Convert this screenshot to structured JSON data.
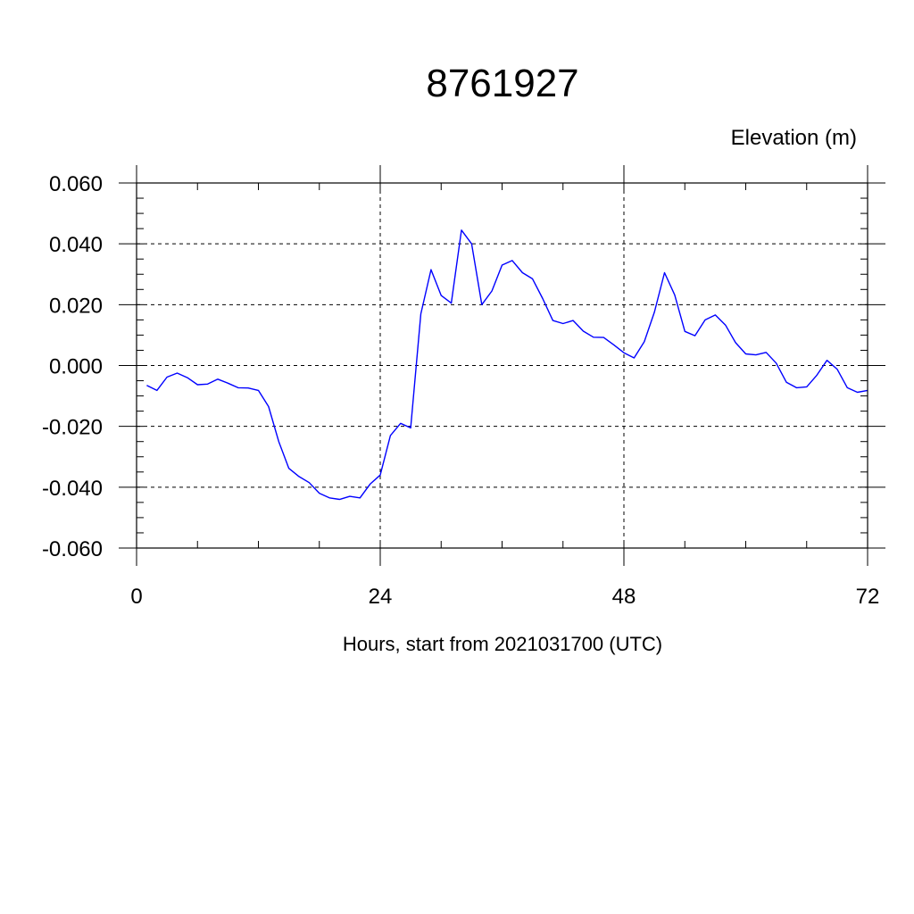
{
  "chart_data": {
    "type": "line",
    "title": "8761927",
    "ylabel": "Elevation (m)",
    "xlabel": "Hours, start from 2021031700 (UTC)",
    "xlim": [
      0,
      72
    ],
    "ylim": [
      -0.06,
      0.06
    ],
    "x_ticks": [
      0,
      24,
      48,
      72
    ],
    "x_tick_labels": [
      "0",
      "24",
      "48",
      "72"
    ],
    "y_ticks": [
      -0.06,
      -0.04,
      -0.02,
      0.0,
      0.02,
      0.04,
      0.06
    ],
    "y_tick_labels": [
      "-0.060",
      "-0.040",
      "-0.020",
      "0.000",
      "0.020",
      "0.040",
      "0.060"
    ],
    "grid": true,
    "line_color": "#0000ff",
    "series": [
      {
        "x": [
          1,
          2,
          3,
          4,
          5,
          6,
          7,
          8,
          9,
          10,
          11,
          12,
          13,
          14,
          15,
          16,
          17,
          18,
          19,
          20,
          21,
          22,
          23,
          24,
          25,
          26,
          27,
          28,
          29,
          30,
          31,
          32,
          33,
          34,
          35,
          36,
          37,
          38,
          39,
          40,
          41,
          42,
          43,
          44,
          45,
          46,
          47,
          48,
          49,
          50,
          51,
          52,
          53,
          54,
          55,
          56,
          57,
          58,
          59,
          60,
          61,
          62,
          63,
          64,
          65,
          66,
          67,
          68,
          69,
          70,
          71,
          72
        ],
        "y": [
          -0.0065,
          -0.0082,
          -0.0038,
          -0.0025,
          -0.004,
          -0.0063,
          -0.0061,
          -0.0045,
          -0.0058,
          -0.0073,
          -0.0074,
          -0.0082,
          -0.0135,
          -0.025,
          -0.0338,
          -0.0365,
          -0.0385,
          -0.042,
          -0.0435,
          -0.044,
          -0.043,
          -0.0435,
          -0.039,
          -0.036,
          -0.023,
          -0.019,
          -0.0205,
          0.017,
          0.0315,
          0.023,
          0.0205,
          0.0445,
          0.04,
          0.02,
          0.0245,
          0.033,
          0.0345,
          0.0305,
          0.0285,
          0.022,
          0.0148,
          0.0138,
          0.0148,
          0.0113,
          0.0093,
          0.0092,
          0.0068,
          0.0042,
          0.0025,
          0.0078,
          0.0175,
          0.0305,
          0.0232,
          0.0112,
          0.0098,
          0.015,
          0.0166,
          0.0133,
          0.0075,
          0.0038,
          0.0035,
          0.0043,
          0.0008,
          -0.0055,
          -0.0073,
          -0.007,
          -0.0032,
          0.0017,
          -0.0012,
          -0.0073,
          -0.0088,
          -0.0082
        ]
      }
    ]
  }
}
